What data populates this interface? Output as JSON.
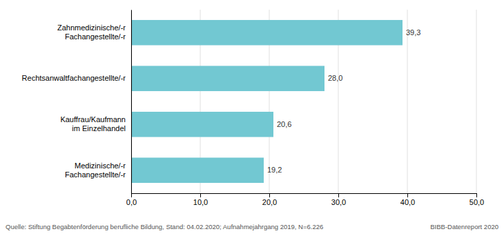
{
  "chart_data": {
    "type": "bar",
    "orientation": "horizontal",
    "categories": [
      "Medizinische/-r\nFachangestellte/-r",
      "Kauffrau/Kaufmann\nim Einzelhandel",
      "Rechtsanwaltfachangestellte/-r",
      "Zahnmedizinische/-r\nFachangestellte/-r"
    ],
    "values": [
      19.2,
      20.6,
      28.0,
      39.3
    ],
    "value_labels": [
      "19,2",
      "20,6",
      "28,0",
      "39,3"
    ],
    "data_labels": true,
    "color": "#72c8d2",
    "xlim": [
      0,
      50
    ],
    "xticks": [
      {
        "value": 0,
        "label": "0,0"
      },
      {
        "value": 10,
        "label": "10,0"
      },
      {
        "value": 20,
        "label": "20,0"
      },
      {
        "value": 30,
        "label": "30,0"
      },
      {
        "value": 40,
        "label": "40,0"
      },
      {
        "value": 50,
        "label": "50,0"
      }
    ],
    "grid": true,
    "annotations": [
      "Quelle: Stiftung Begabtenförderung berufliche Bildung, Stand: 04.02.2020; Aufnahmejahrgang 2019, N=6.226",
      "BIBB-Datenreport 2020"
    ]
  }
}
